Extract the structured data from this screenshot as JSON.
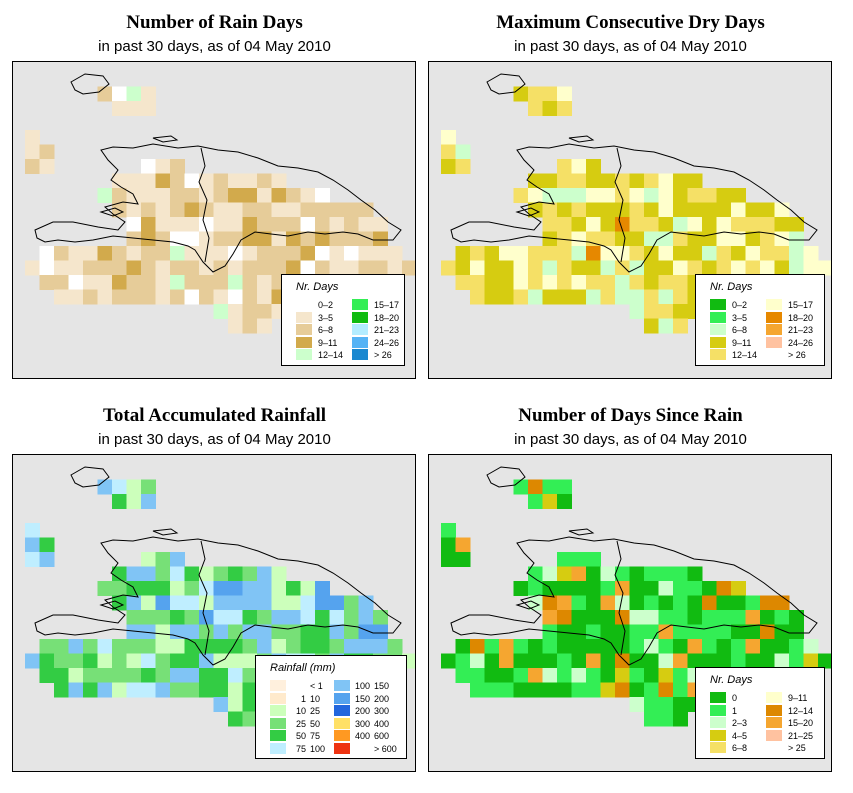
{
  "panels": [
    {
      "id": "rain-days",
      "title": "Number of Rain Days",
      "subtitle": "in past 30 days, as of  04 May 2010",
      "legend": {
        "title": "Nr. Days",
        "items": [
          {
            "label": "0–2",
            "color": "#ffffff"
          },
          {
            "label": "3–5",
            "color": "#f5e6cc"
          },
          {
            "label": "6–8",
            "color": "#e6cc99"
          },
          {
            "label": "9–11",
            "color": "#d2aa4c"
          },
          {
            "label": "12–14",
            "color": "#ccffcc"
          },
          {
            "label": "15–17",
            "color": "#33ee55"
          },
          {
            "label": "18–20",
            "color": "#11bb11"
          },
          {
            "label": "21–23",
            "color": "#b3ecff"
          },
          {
            "label": "24–26",
            "color": "#55b3f5"
          },
          {
            "label": "> 26",
            "color": "#1a88d0"
          }
        ]
      },
      "palette": [
        "#ffffff",
        "#f5e6cc",
        "#e6cc99",
        "#d2aa4c",
        "#ccffcc"
      ],
      "weights": [
        0.06,
        0.32,
        0.42,
        0.16,
        0.04
      ]
    },
    {
      "id": "dry-days",
      "title": "Maximum Consecutive Dry Days",
      "subtitle": "in past 30 days, as of  04 May 2010",
      "legend": {
        "title": "Nr. Days",
        "items": [
          {
            "label": "0–2",
            "color": "#11bb11"
          },
          {
            "label": "3–5",
            "color": "#33ee55"
          },
          {
            "label": "6–8",
            "color": "#ccffcc"
          },
          {
            "label": "9–11",
            "color": "#d6cc11"
          },
          {
            "label": "12–14",
            "color": "#f5e066"
          },
          {
            "label": "15–17",
            "color": "#ffffcc"
          },
          {
            "label": "18–20",
            "color": "#e68800"
          },
          {
            "label": "21–23",
            "color": "#f5a630"
          },
          {
            "label": "24–26",
            "color": "#ffc2a0"
          },
          {
            "label": "> 26",
            "color": "#ffffff"
          }
        ]
      },
      "palette": [
        "#d6cc11",
        "#f5e066",
        "#ffffcc",
        "#ccffcc",
        "#e68800"
      ],
      "weights": [
        0.33,
        0.34,
        0.2,
        0.11,
        0.02
      ]
    },
    {
      "id": "total-rainfall",
      "title": "Total Accumulated Rainfall",
      "subtitle": "in past 30 days, as of  04 May 2010",
      "legend": {
        "title": "Rainfall (mm)",
        "items": [
          {
            "lo": "",
            "hi": "< 1",
            "color": "#fff0dd"
          },
          {
            "lo": "1",
            "hi": "10",
            "color": "#ffeacc"
          },
          {
            "lo": "10",
            "hi": "25",
            "color": "#ccffbb"
          },
          {
            "lo": "25",
            "hi": "50",
            "color": "#77e077"
          },
          {
            "lo": "50",
            "hi": "75",
            "color": "#33cc44"
          },
          {
            "lo": "75",
            "hi": "100",
            "color": "#bfeeff"
          },
          {
            "lo": "100",
            "hi": "150",
            "color": "#80c4f5"
          },
          {
            "lo": "150",
            "hi": "200",
            "color": "#55a3ee"
          },
          {
            "lo": "200",
            "hi": "300",
            "color": "#2266dd"
          },
          {
            "lo": "300",
            "hi": "400",
            "color": "#ffe066"
          },
          {
            "lo": "400",
            "hi": "600",
            "color": "#ff9922"
          },
          {
            "lo": "",
            "hi": "> 600",
            "color": "#ee3311"
          }
        ]
      },
      "palette": [
        "#ccffbb",
        "#77e077",
        "#33cc44",
        "#bfeeff",
        "#80c4f5",
        "#55a3ee"
      ],
      "weights": [
        0.12,
        0.22,
        0.24,
        0.14,
        0.22,
        0.06
      ]
    },
    {
      "id": "days-since-rain",
      "title": "Number of Days Since Rain",
      "subtitle": "in past 30 days, as of  04 May 2010",
      "legend": {
        "title": "Nr. Days",
        "items": [
          {
            "label": "0",
            "color": "#11bb11"
          },
          {
            "label": "1",
            "color": "#33ee55"
          },
          {
            "label": "2–3",
            "color": "#ccffcc"
          },
          {
            "label": "4–5",
            "color": "#d6cc11"
          },
          {
            "label": "6–8",
            "color": "#f5e066"
          },
          {
            "label": "9–11",
            "color": "#ffffcc"
          },
          {
            "label": "12–14",
            "color": "#dd8800"
          },
          {
            "label": "15–20",
            "color": "#f5a630"
          },
          {
            "label": "21–25",
            "color": "#ffc2a0"
          },
          {
            "label": "> 25",
            "color": "#ffffff"
          }
        ]
      },
      "palette": [
        "#11bb11",
        "#33ee55",
        "#ccffcc",
        "#f5a630",
        "#d6cc11",
        "#dd8800"
      ],
      "weights": [
        0.36,
        0.34,
        0.1,
        0.12,
        0.04,
        0.04
      ]
    }
  ]
}
